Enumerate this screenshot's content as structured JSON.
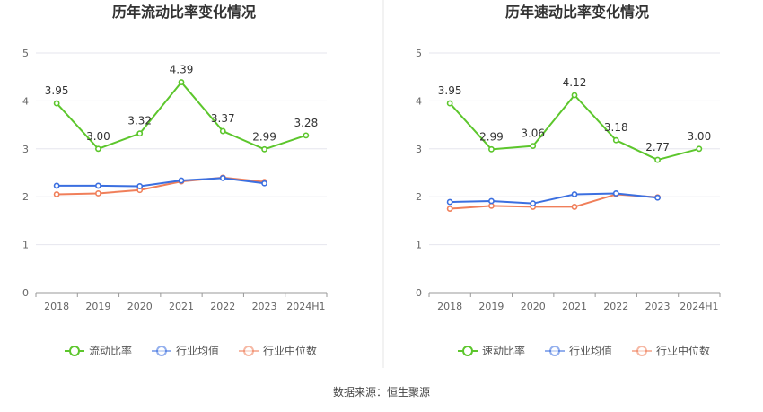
{
  "footer": {
    "source": "数据来源：恒生聚源"
  },
  "legend": [
    {
      "name": "行业均值",
      "color": "#3b6fe0"
    },
    {
      "name": "行业中位数",
      "color": "#f07f5a"
    }
  ],
  "chart_data": [
    {
      "type": "line",
      "title": "历年流动比率变化情况",
      "categories": [
        "2018",
        "2019",
        "2020",
        "2021",
        "2022",
        "2023",
        "2024H1"
      ],
      "ylim": [
        0,
        5
      ],
      "yticks": [
        0,
        1,
        2,
        3,
        4,
        5
      ],
      "series": [
        {
          "name": "流动比率",
          "color": "#5cc62c",
          "labels": true,
          "values": [
            3.95,
            3.0,
            3.32,
            4.39,
            3.37,
            2.99,
            3.28
          ]
        },
        {
          "name": "行业均值",
          "color": "#3b6fe0",
          "labels": false,
          "values": [
            2.23,
            2.23,
            2.22,
            2.34,
            2.39,
            2.28,
            null
          ]
        },
        {
          "name": "行业中位数",
          "color": "#f07f5a",
          "labels": false,
          "values": [
            2.05,
            2.07,
            2.14,
            2.32,
            2.4,
            2.31,
            null
          ]
        }
      ]
    },
    {
      "type": "line",
      "title": "历年速动比率变化情况",
      "categories": [
        "2018",
        "2019",
        "2020",
        "2021",
        "2022",
        "2023",
        "2024H1"
      ],
      "ylim": [
        0,
        5
      ],
      "yticks": [
        0,
        1,
        2,
        3,
        4,
        5
      ],
      "series": [
        {
          "name": "速动比率",
          "color": "#5cc62c",
          "labels": true,
          "values": [
            3.95,
            2.99,
            3.06,
            4.12,
            3.18,
            2.77,
            3.0
          ]
        },
        {
          "name": "行业均值",
          "color": "#3b6fe0",
          "labels": false,
          "values": [
            1.89,
            1.91,
            1.86,
            2.05,
            2.07,
            1.98,
            null
          ]
        },
        {
          "name": "行业中位数",
          "color": "#f07f5a",
          "labels": false,
          "values": [
            1.75,
            1.81,
            1.79,
            1.79,
            2.05,
            1.99,
            null
          ]
        }
      ]
    }
  ]
}
